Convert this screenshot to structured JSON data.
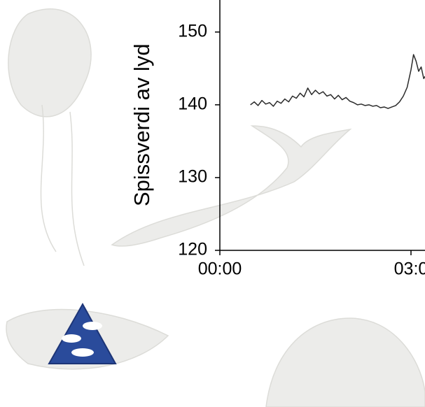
{
  "chart_data": {
    "type": "line",
    "y_label": "Spissverdi av lyd",
    "x": [
      0.48,
      0.54,
      0.6,
      0.66,
      0.72,
      0.78,
      0.84,
      0.9,
      0.96,
      1.02,
      1.08,
      1.14,
      1.2,
      1.26,
      1.32,
      1.38,
      1.44,
      1.5,
      1.56,
      1.62,
      1.68,
      1.74,
      1.8,
      1.86,
      1.92,
      1.98,
      2.04,
      2.1,
      2.16,
      2.22,
      2.28,
      2.34,
      2.4,
      2.46,
      2.52,
      2.58,
      2.64,
      2.7,
      2.76,
      2.82,
      2.88,
      2.94,
      3.0,
      3.04,
      3.08,
      3.12,
      3.16,
      3.2,
      3.22
    ],
    "series": [
      {
        "name": "Spissverdi",
        "color": "#2b2b2b",
        "values": [
          140.0,
          140.4,
          139.9,
          140.6,
          140.1,
          140.3,
          139.8,
          140.5,
          140.2,
          140.8,
          140.4,
          141.2,
          140.9,
          141.6,
          141.1,
          142.3,
          141.4,
          142.0,
          141.5,
          141.8,
          141.2,
          141.4,
          140.8,
          141.3,
          140.7,
          141.0,
          140.5,
          140.3,
          140.0,
          140.1,
          139.9,
          140.0,
          139.8,
          139.9,
          139.6,
          139.7,
          139.5,
          139.7,
          139.9,
          140.4,
          141.2,
          142.4,
          144.8,
          146.9,
          146.0,
          144.6,
          145.2,
          143.6,
          143.9
        ]
      }
    ],
    "xlim": [
      0,
      3.22
    ],
    "ylim": [
      120,
      154.4
    ],
    "xticks": [
      {
        "value": 0,
        "label": "00:00"
      },
      {
        "value": 3,
        "label": "03:0"
      }
    ],
    "yticks": [
      120,
      130,
      140,
      150
    ]
  }
}
